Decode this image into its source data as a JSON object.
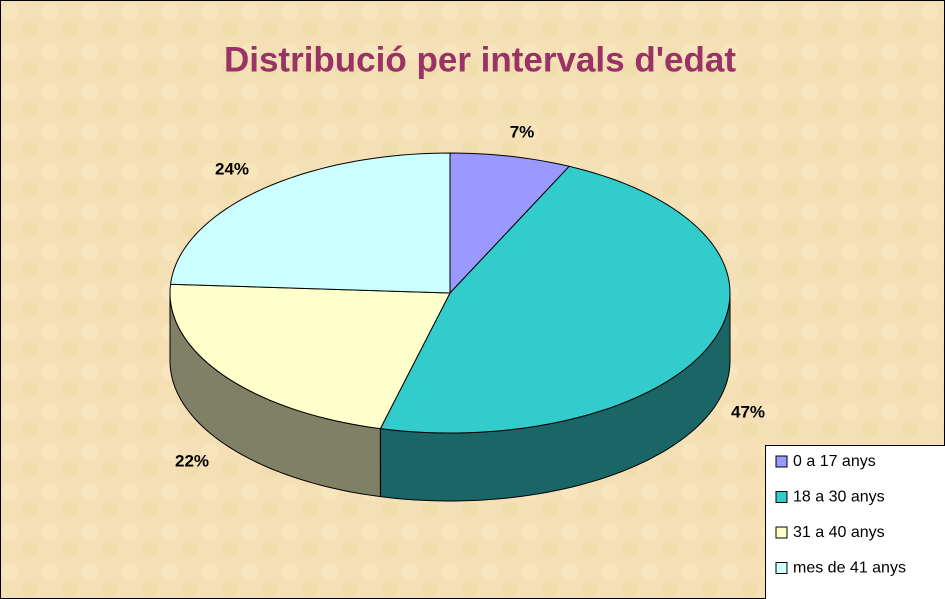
{
  "chart_data": {
    "type": "pie",
    "title": "Distribució per intervals d'edat",
    "categories": [
      "0 a 17 anys",
      "18 a 30 anys",
      "31 a 40 anys",
      "mes de 41 anys"
    ],
    "values": [
      7,
      47,
      22,
      24
    ],
    "value_labels": [
      "7%",
      "47%",
      "22%",
      "24%"
    ],
    "colors": [
      "#9999ff",
      "#33cccc",
      "#ffffcc",
      "#ccffff"
    ],
    "legend": "bottom-right"
  }
}
